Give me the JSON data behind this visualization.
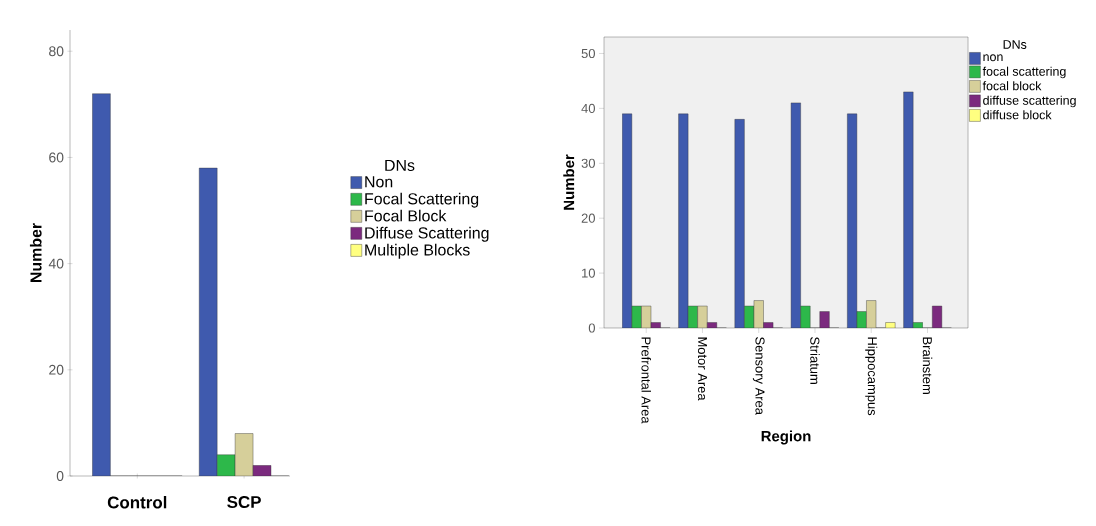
{
  "chart_data": [
    {
      "type": "bar",
      "ylabel": "Number",
      "legend_title": "DNs",
      "legend": "right",
      "categories": [
        "Control",
        "SCP"
      ],
      "ylim": [
        0,
        84
      ],
      "yticks": [
        0,
        20,
        40,
        60,
        80
      ],
      "series": [
        {
          "name": "Non",
          "color": "#3f5aae",
          "values": [
            72,
            58
          ]
        },
        {
          "name": "Focal Scattering",
          "color": "#2db84a",
          "values": [
            0,
            4
          ]
        },
        {
          "name": "Focal Block",
          "color": "#d6cf9a",
          "values": [
            0,
            8
          ]
        },
        {
          "name": "Diffuse Scattering",
          "color": "#7b2a7e",
          "values": [
            0,
            2
          ]
        },
        {
          "name": "Multiple Blocks",
          "color": "#ffff80",
          "values": [
            0,
            0
          ]
        }
      ]
    },
    {
      "type": "bar",
      "xlabel": "Region",
      "ylabel": "Number",
      "legend_title": "DNs",
      "legend": "top right",
      "categories": [
        "Prefrontal Area",
        "Motor Area",
        "Sensory Area",
        "Striatum",
        "Hippocampus",
        "Brainstem"
      ],
      "ylim": [
        0,
        53
      ],
      "yticks": [
        0,
        10,
        20,
        30,
        40,
        50
      ],
      "series": [
        {
          "name": "non",
          "color": "#3f5aae",
          "values": [
            39,
            39,
            38,
            41,
            39,
            43
          ]
        },
        {
          "name": "focal scattering",
          "color": "#2db84a",
          "values": [
            4,
            4,
            4,
            4,
            3,
            1
          ]
        },
        {
          "name": "focal block",
          "color": "#d6cf9a",
          "values": [
            4,
            4,
            5,
            0,
            5,
            0
          ]
        },
        {
          "name": "diffuse scattering",
          "color": "#7b2a7e",
          "values": [
            1,
            1,
            1,
            3,
            0,
            4
          ]
        },
        {
          "name": "diffuse block",
          "color": "#ffff80",
          "values": [
            0,
            0,
            0,
            0,
            1,
            0
          ]
        }
      ]
    }
  ]
}
